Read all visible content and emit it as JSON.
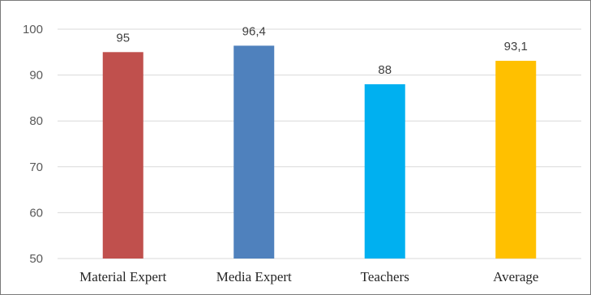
{
  "chart_data": {
    "type": "bar",
    "categories": [
      "Material Expert",
      "Media Expert",
      "Teachers",
      "Average"
    ],
    "values": [
      95,
      96.4,
      88,
      93.1
    ],
    "data_labels": [
      "95",
      "96,4",
      "88",
      "93,1"
    ],
    "colors": [
      "#C0504D",
      "#4F81BD",
      "#00B0F0",
      "#FFC000"
    ],
    "title": "",
    "xlabel": "",
    "ylabel": "",
    "ylim": [
      50,
      100
    ],
    "yticks": [
      50,
      60,
      70,
      80,
      90,
      100
    ],
    "grid": true,
    "legend": "none"
  }
}
